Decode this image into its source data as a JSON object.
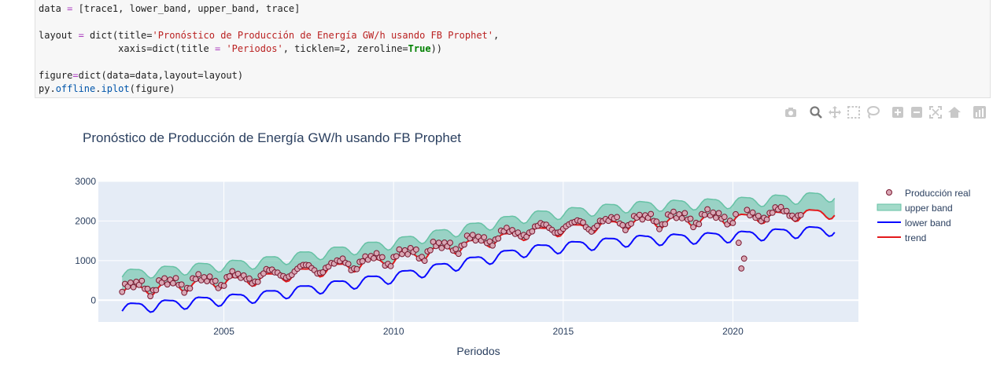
{
  "code": {
    "line1": {
      "a": "data ",
      "op": "=",
      "b": " [trace1, lower_band, upper_band, trace]"
    },
    "line3": {
      "a": "layout ",
      "op": "=",
      "b": " dict(title=",
      "s": "'Pronóstico de Producción de Energía GW/h usando FB Prophet'",
      "c": ","
    },
    "line4": {
      "a": "              xaxis=dict(title ",
      "op": "=",
      "b": " ",
      "s": "'Periodos'",
      "c": ", ticklen=",
      "n": "2",
      "d": ", zeroline=",
      "k": "True",
      "e": "))"
    },
    "line6": {
      "a": "figure",
      "op": "=",
      "b": "dict(data=data,layout=layout)"
    },
    "line7": {
      "a": "py.",
      "attr1": "offline",
      "b": ".",
      "attr2": "iplot",
      "c": "(figure)"
    }
  },
  "modebar": {
    "icons": [
      "camera-icon",
      "zoom-icon",
      "pan-icon",
      "box-select-icon",
      "lasso-icon",
      "zoom-in-icon",
      "zoom-out-icon",
      "autoscale-icon",
      "reset-axes-icon",
      "plotly-logo-icon"
    ]
  },
  "colors": {
    "plot_bg": "#e5ecf6",
    "band_fill": "rgba(102,194,165,0.6)",
    "band_line": "#66c2a5",
    "lower": "#0a0aff",
    "trend": "#e31a1c",
    "marker_fill": "#d8a7b4",
    "marker_line": "#7a1830",
    "text": "#2a3f5f"
  },
  "chart_data": {
    "type": "line",
    "title": "Pronóstico de Producción de Energía GW/h usando FB Prophet",
    "xlabel": "Periodos",
    "ylabel": "",
    "xlim": [
      2001.3,
      2023.7
    ],
    "ylim": [
      -550,
      3000
    ],
    "x_ticks": [
      2005,
      2010,
      2015,
      2020
    ],
    "y_ticks": [
      0,
      1000,
      2000,
      3000
    ],
    "grid": true,
    "legend_position": "right",
    "series": [
      {
        "name": "Producción real",
        "mode": "markers"
      },
      {
        "name": "upper band",
        "mode": "band"
      },
      {
        "name": "lower band",
        "mode": "line"
      },
      {
        "name": "trend",
        "mode": "line"
      }
    ],
    "x_start": 2002.0,
    "x_step": 0.0833333,
    "trend_knots": [
      [
        2002,
        230
      ],
      [
        2006,
        530
      ],
      [
        2010,
        1020
      ],
      [
        2014,
        1700
      ],
      [
        2017,
        1950
      ],
      [
        2020,
        2050
      ],
      [
        2023,
        2220
      ]
    ],
    "season_amplitude": 130,
    "band_half_width": 430,
    "actual_end_year": 2022.0,
    "actual_offset": 70,
    "covid_points": [
      [
        2020.17,
        1450
      ],
      [
        2020.25,
        800
      ],
      [
        2020.33,
        1050
      ]
    ]
  }
}
